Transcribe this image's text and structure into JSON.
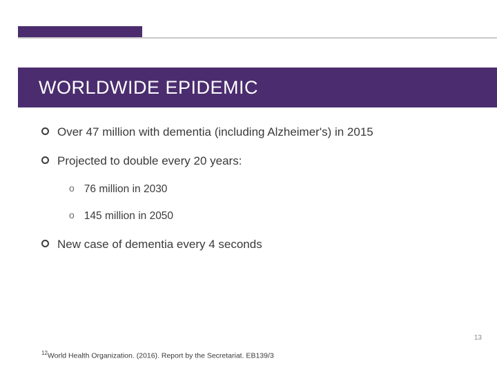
{
  "colors": {
    "accent": "#4b2d6f",
    "divider": "#c9c9c9",
    "text": "#3a3a3a",
    "background": "#ffffff"
  },
  "title": "WORLDWIDE EPIDEMIC",
  "bullets": [
    "Over 47 million with dementia (including Alzheimer's) in 2015",
    "Projected to double every 20 years:",
    "New case of dementia every 4 seconds"
  ],
  "subBullets": [
    "76 million in 2030",
    "145 million in 2050"
  ],
  "pageNumber": "13",
  "footnoteRef": "12",
  "footnoteText": "World Health Organization. (2016). Report by the Secretariat. EB139/3"
}
